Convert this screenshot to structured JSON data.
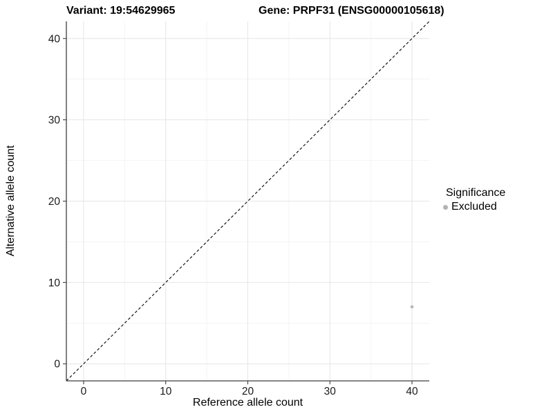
{
  "title": {
    "variant": "Variant: 19:54629965",
    "gene": "Gene: PRPF31 (ENSG00000105618)"
  },
  "chart_data": {
    "type": "scatter",
    "title": "Variant: 19:54629965   Gene: PRPF31 (ENSG00000105618)",
    "xlabel": "Reference allele count",
    "ylabel": "Alternative allele count",
    "xlim": [
      -2.1,
      42.1
    ],
    "ylim": [
      -2.1,
      42.1
    ],
    "x_ticks": [
      0,
      10,
      20,
      30,
      40
    ],
    "y_ticks": [
      0,
      10,
      20,
      30,
      40
    ],
    "x_minor_ticks": [
      5,
      15,
      25,
      35
    ],
    "y_minor_ticks": [
      5,
      15,
      25,
      35
    ],
    "grid": "major+minor",
    "reference_line": {
      "type": "identity",
      "equation": "y = x",
      "style": "dashed",
      "color": "#000000"
    },
    "series": [
      {
        "name": "Excluded",
        "color": "#b9b9b9",
        "points": [
          {
            "x": 40,
            "y": 7
          }
        ]
      }
    ],
    "legend": {
      "title": "Significance",
      "position": "right",
      "items": [
        {
          "label": "Excluded",
          "color": "#b3b3b3"
        }
      ]
    },
    "colors": {
      "grid_major": "#e5e5e5",
      "grid_minor": "#f2f2f2",
      "axis_line": "#3c3c3c",
      "tick_label": "#1a1a1a",
      "point": "#b9b9b9"
    }
  }
}
